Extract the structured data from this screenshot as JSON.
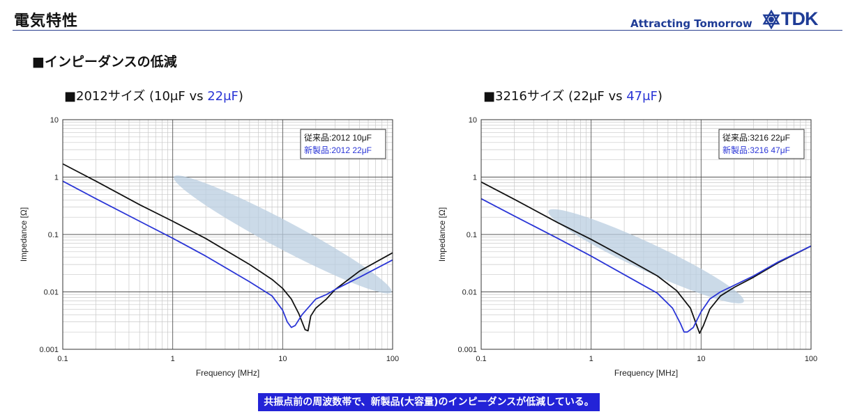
{
  "header": {
    "title": "電気特性",
    "tagline": "Attracting Tomorrow",
    "logo_text": "TDK"
  },
  "section_title": "■インピーダンスの低減",
  "caption": "共振点前の周波数帯で、新製品(大容量)のインピーダンスが低減している。",
  "colors": {
    "old": "#111111",
    "new": "#2a35d6",
    "ellipse": "#b9cde0",
    "accent": "#1f3c96"
  },
  "chart_data": [
    {
      "type": "line",
      "title_prefix": "■2012サイズ (10μF vs ",
      "title_highlight": "22μF",
      "title_suffix": ")",
      "xlabel": "Frequency [MHz]",
      "ylabel": "Impedance [Ω]",
      "xscale": "log",
      "yscale": "log",
      "xlim": [
        0.1,
        100
      ],
      "ylim": [
        0.001,
        10
      ],
      "xticks": [
        "0.1",
        "1",
        "10",
        "100"
      ],
      "yticks": [
        "0.001",
        "0.01",
        "0.1",
        "1",
        "10"
      ],
      "grid": true,
      "legend": {
        "placement": "top-right",
        "entries": [
          "従来品:2012 10μF",
          "新製品:2012 22μF"
        ]
      },
      "series": [
        {
          "name": "従来品:2012 10μF",
          "color": "#111111",
          "x": [
            0.1,
            0.2,
            0.5,
            1,
            2,
            5,
            8,
            10,
            12,
            14,
            16,
            17,
            18,
            20,
            25,
            30,
            50,
            100
          ],
          "y": [
            1.7,
            0.85,
            0.33,
            0.17,
            0.085,
            0.03,
            0.0165,
            0.0115,
            0.0075,
            0.0042,
            0.0022,
            0.0021,
            0.0038,
            0.0052,
            0.0075,
            0.011,
            0.023,
            0.048
          ]
        },
        {
          "name": "新製品:2012 22μF",
          "color": "#2a35d6",
          "x": [
            0.1,
            0.2,
            0.5,
            1,
            2,
            5,
            8,
            10,
            11,
            12,
            13,
            15,
            20,
            25,
            30,
            50,
            100
          ],
          "y": [
            0.85,
            0.42,
            0.17,
            0.086,
            0.042,
            0.015,
            0.0085,
            0.0048,
            0.003,
            0.0024,
            0.0026,
            0.004,
            0.0075,
            0.009,
            0.011,
            0.018,
            0.036
          ]
        }
      ]
    },
    {
      "type": "line",
      "title_prefix": "■3216サイズ (22μF vs ",
      "title_highlight": "47μF",
      "title_suffix": ")",
      "xlabel": "Frequency [MHz]",
      "ylabel": "Impedance [Ω]",
      "xscale": "log",
      "yscale": "log",
      "xlim": [
        0.1,
        100
      ],
      "ylim": [
        0.001,
        10
      ],
      "xticks": [
        "0.1",
        "1",
        "10",
        "100"
      ],
      "yticks": [
        "0.001",
        "0.01",
        "0.1",
        "1",
        "10"
      ],
      "grid": true,
      "legend": {
        "placement": "top-right",
        "entries": [
          "従来品:3216 22μF",
          "新製品:3216 47μF"
        ]
      },
      "series": [
        {
          "name": "従来品:3216 22μF",
          "color": "#111111",
          "x": [
            0.1,
            0.2,
            0.5,
            1,
            2,
            4,
            6,
            8,
            9,
            9.7,
            10.5,
            12,
            15,
            20,
            30,
            50,
            100
          ],
          "y": [
            0.82,
            0.41,
            0.16,
            0.082,
            0.04,
            0.019,
            0.0105,
            0.0052,
            0.0028,
            0.0019,
            0.0026,
            0.005,
            0.0085,
            0.012,
            0.018,
            0.032,
            0.063
          ]
        },
        {
          "name": "新製品:3216 47μF",
          "color": "#2a35d6",
          "x": [
            0.1,
            0.2,
            0.5,
            1,
            2,
            4,
            5.5,
            6.5,
            7,
            7.5,
            8.5,
            10,
            12,
            15,
            20,
            30,
            50,
            100
          ],
          "y": [
            0.42,
            0.21,
            0.085,
            0.042,
            0.02,
            0.0095,
            0.0052,
            0.0028,
            0.002,
            0.002,
            0.0024,
            0.0045,
            0.0075,
            0.01,
            0.013,
            0.019,
            0.033,
            0.063
          ]
        }
      ]
    }
  ]
}
